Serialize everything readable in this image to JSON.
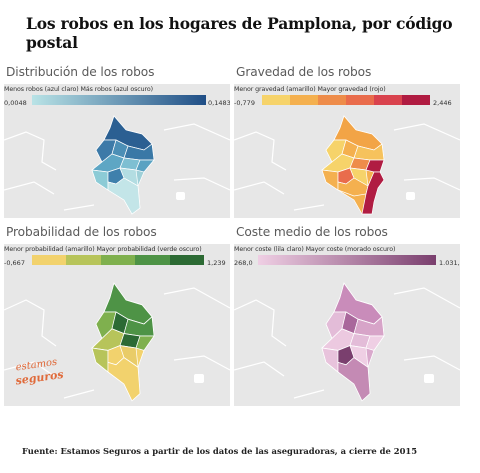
{
  "title": "Los robos en los hogares de Pamplona, por código postal",
  "panels": {
    "distribution": {
      "title": "Distribución de los robos",
      "legend_label": "Menos robos (azul claro) Más robos (azul oscuro)",
      "min": "0,0048",
      "max": "0,1483",
      "color_start": "#b9e3e6",
      "color_end": "#1f4e86"
    },
    "severity": {
      "title": "Gravedad de los robos",
      "legend_label": "Menor gravedad (amarillo) Mayor gravedad (rojo)",
      "min": "-0,779",
      "max": "2,446",
      "colors": [
        "#f6d36a",
        "#f4b04f",
        "#ee8c4a",
        "#e96c4c",
        "#d9434e",
        "#b01c42"
      ]
    },
    "probability": {
      "title": "Probabilidad de los robos",
      "legend_label": "Menor probabilidad (amarillo) Mayor probabilidad (verde oscuro)",
      "min": "-0,667",
      "max": "1,239",
      "colors": [
        "#f2d26d",
        "#b7c45a",
        "#7fb04e",
        "#4e9346",
        "#2c6a34"
      ]
    },
    "cost": {
      "title": "Coste medio de los robos",
      "legend_label": "Menor coste (lila claro) Mayor coste (morado oscuro)",
      "min": "268,0",
      "max": "1.031,7",
      "color_start": "#efcfe4",
      "color_end": "#7a3f6e"
    }
  },
  "logo_text": [
    "estamos",
    "seguros"
  ],
  "footer": "Fuente: Estamos Seguros a partir de los datos de las aseguradoras, a cierre de 2015"
}
